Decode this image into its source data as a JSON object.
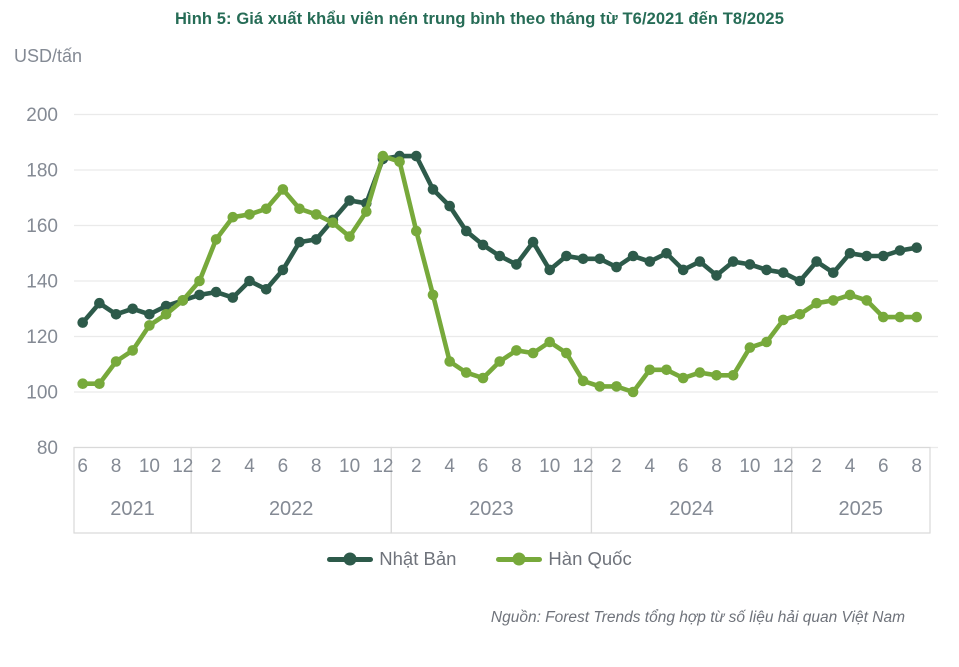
{
  "title": "Hình 5: Giá xuất khẩu viên nén trung bình theo tháng từ T6/2021 đến T8/2025",
  "y_axis_unit": "USD/tấn",
  "source": "Nguồn: Forest Trends tổng hợp từ số liệu hải quan Việt Nam",
  "colors": {
    "title": "#266c56",
    "axis_text": "#848a94",
    "legend_text": "#6f737b",
    "grid": "#eaeaea",
    "box_border": "#d9d9d9",
    "japan": "#2d5a4a",
    "korea": "#77a93b"
  },
  "chart_data": {
    "type": "line",
    "title": "Hình 5: Giá xuất khẩu viên nén trung bình theo tháng từ T6/2021 đến T8/2025",
    "ylabel": "USD/tấn",
    "ylim": [
      80,
      200
    ],
    "yticks": [
      200,
      180,
      160,
      140,
      120,
      100,
      80
    ],
    "grid": true,
    "legend_position": "bottom",
    "x_start": "T6/2021",
    "x_end": "T8/2025",
    "x_ticks": [
      {
        "i": 0,
        "label": "6"
      },
      {
        "i": 2,
        "label": "8"
      },
      {
        "i": 4,
        "label": "10"
      },
      {
        "i": 6,
        "label": "12"
      },
      {
        "i": 8,
        "label": "2"
      },
      {
        "i": 10,
        "label": "4"
      },
      {
        "i": 12,
        "label": "6"
      },
      {
        "i": 14,
        "label": "8"
      },
      {
        "i": 16,
        "label": "10"
      },
      {
        "i": 18,
        "label": "12"
      },
      {
        "i": 20,
        "label": "2"
      },
      {
        "i": 22,
        "label": "4"
      },
      {
        "i": 24,
        "label": "6"
      },
      {
        "i": 26,
        "label": "8"
      },
      {
        "i": 28,
        "label": "10"
      },
      {
        "i": 30,
        "label": "12"
      },
      {
        "i": 32,
        "label": "2"
      },
      {
        "i": 34,
        "label": "4"
      },
      {
        "i": 36,
        "label": "6"
      },
      {
        "i": 38,
        "label": "8"
      },
      {
        "i": 40,
        "label": "10"
      },
      {
        "i": 42,
        "label": "12"
      },
      {
        "i": 44,
        "label": "2"
      },
      {
        "i": 46,
        "label": "4"
      },
      {
        "i": 48,
        "label": "6"
      },
      {
        "i": 50,
        "label": "8"
      }
    ],
    "year_groups": [
      {
        "label": "2021",
        "start": 0,
        "end": 6
      },
      {
        "label": "2022",
        "start": 7,
        "end": 18
      },
      {
        "label": "2023",
        "start": 19,
        "end": 30
      },
      {
        "label": "2024",
        "start": 31,
        "end": 42
      },
      {
        "label": "2025",
        "start": 43,
        "end": 50
      }
    ],
    "series": [
      {
        "name": "Nhật Bản",
        "color": "#2d5a4a",
        "values": [
          125,
          132,
          128,
          130,
          128,
          131,
          133,
          135,
          136,
          134,
          140,
          137,
          144,
          154,
          155,
          162,
          169,
          168,
          184,
          185,
          185,
          173,
          167,
          158,
          153,
          149,
          146,
          154,
          144,
          149,
          148,
          148,
          145,
          149,
          147,
          150,
          144,
          147,
          142,
          147,
          146,
          144,
          143,
          140,
          147,
          143,
          150,
          149,
          149,
          151,
          152
        ]
      },
      {
        "name": "Hàn Quốc",
        "color": "#77a93b",
        "values": [
          103,
          103,
          111,
          115,
          124,
          128,
          133,
          140,
          155,
          163,
          164,
          166,
          173,
          166,
          164,
          161,
          156,
          165,
          185,
          183,
          158,
          135,
          111,
          107,
          105,
          111,
          115,
          114,
          118,
          114,
          104,
          102,
          102,
          100,
          108,
          108,
          105,
          107,
          106,
          106,
          116,
          118,
          126,
          128,
          132,
          133,
          135,
          133,
          127,
          127,
          127
        ]
      }
    ]
  }
}
